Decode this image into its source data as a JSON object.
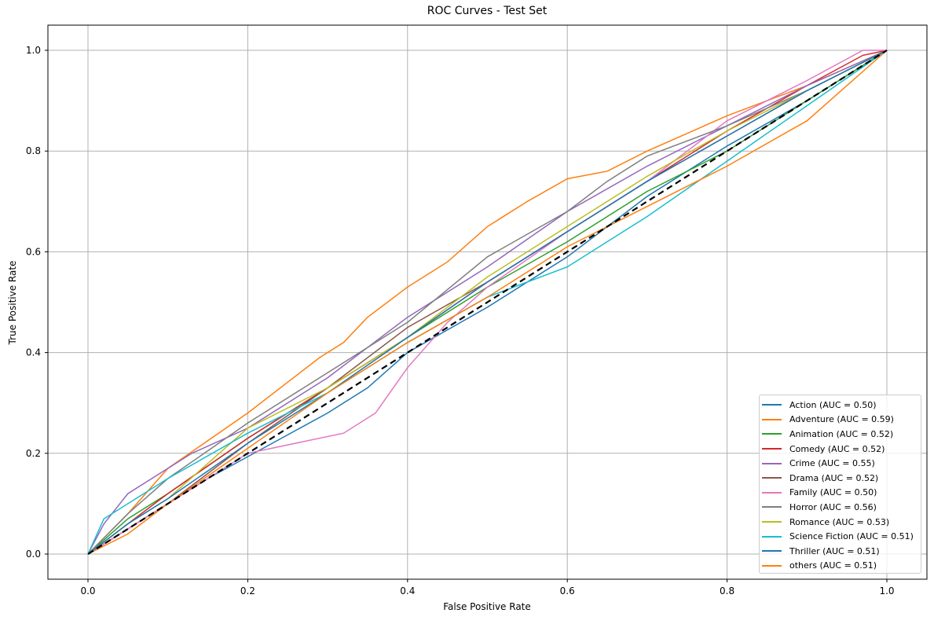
{
  "chart_data": {
    "type": "line",
    "title": "ROC Curves - Test Set",
    "xlabel": "False Positive Rate",
    "ylabel": "True Positive Rate",
    "xlim": [
      -0.05,
      1.05
    ],
    "ylim": [
      -0.05,
      1.05
    ],
    "xticks": [
      "0.0",
      "0.2",
      "0.4",
      "0.6",
      "0.8",
      "1.0"
    ],
    "yticks": [
      "0.0",
      "0.2",
      "0.4",
      "0.6",
      "0.8",
      "1.0"
    ],
    "grid": true,
    "legend_position": "lower right",
    "diagonal": {
      "style": "dashed",
      "color": "#000000",
      "points": [
        [
          0,
          0
        ],
        [
          1,
          1
        ]
      ]
    },
    "series": [
      {
        "name": "Action (AUC = 0.50)",
        "color": "#1f77b4",
        "points": [
          [
            0,
            0
          ],
          [
            0.05,
            0.05
          ],
          [
            0.15,
            0.15
          ],
          [
            0.3,
            0.28
          ],
          [
            0.35,
            0.33
          ],
          [
            0.4,
            0.4
          ],
          [
            0.5,
            0.49
          ],
          [
            0.6,
            0.59
          ],
          [
            0.7,
            0.71
          ],
          [
            0.8,
            0.81
          ],
          [
            0.9,
            0.9
          ],
          [
            1,
            1
          ]
        ]
      },
      {
        "name": "Adventure (AUC = 0.59)",
        "color": "#ff7f0e",
        "points": [
          [
            0,
            0
          ],
          [
            0.05,
            0.08
          ],
          [
            0.1,
            0.17
          ],
          [
            0.2,
            0.28
          ],
          [
            0.29,
            0.39
          ],
          [
            0.32,
            0.42
          ],
          [
            0.35,
            0.47
          ],
          [
            0.4,
            0.53
          ],
          [
            0.45,
            0.58
          ],
          [
            0.5,
            0.65
          ],
          [
            0.55,
            0.7
          ],
          [
            0.6,
            0.745
          ],
          [
            0.65,
            0.76
          ],
          [
            0.7,
            0.8
          ],
          [
            0.8,
            0.87
          ],
          [
            0.9,
            0.93
          ],
          [
            1,
            1
          ]
        ]
      },
      {
        "name": "Animation (AUC = 0.52)",
        "color": "#2ca02c",
        "points": [
          [
            0,
            0
          ],
          [
            0.05,
            0.07
          ],
          [
            0.1,
            0.12
          ],
          [
            0.2,
            0.23
          ],
          [
            0.3,
            0.33
          ],
          [
            0.4,
            0.43
          ],
          [
            0.5,
            0.53
          ],
          [
            0.6,
            0.62
          ],
          [
            0.7,
            0.72
          ],
          [
            0.8,
            0.8
          ],
          [
            0.9,
            0.9
          ],
          [
            1,
            1
          ]
        ]
      },
      {
        "name": "Comedy (AUC = 0.52)",
        "color": "#d62728",
        "points": [
          [
            0,
            0
          ],
          [
            0.05,
            0.06
          ],
          [
            0.1,
            0.12
          ],
          [
            0.2,
            0.23
          ],
          [
            0.3,
            0.33
          ],
          [
            0.4,
            0.43
          ],
          [
            0.5,
            0.54
          ],
          [
            0.6,
            0.64
          ],
          [
            0.7,
            0.74
          ],
          [
            0.8,
            0.84
          ],
          [
            0.9,
            0.93
          ],
          [
            0.97,
            0.99
          ],
          [
            1,
            1
          ]
        ]
      },
      {
        "name": "Crime (AUC = 0.55)",
        "color": "#9467bd",
        "points": [
          [
            0,
            0
          ],
          [
            0.02,
            0.06
          ],
          [
            0.05,
            0.12
          ],
          [
            0.1,
            0.17
          ],
          [
            0.13,
            0.2
          ],
          [
            0.2,
            0.25
          ],
          [
            0.3,
            0.35
          ],
          [
            0.4,
            0.47
          ],
          [
            0.5,
            0.57
          ],
          [
            0.6,
            0.68
          ],
          [
            0.7,
            0.77
          ],
          [
            0.8,
            0.85
          ],
          [
            0.9,
            0.93
          ],
          [
            1,
            1
          ]
        ]
      },
      {
        "name": "Drama (AUC = 0.52)",
        "color": "#8c564b",
        "points": [
          [
            0,
            0
          ],
          [
            0.05,
            0.05
          ],
          [
            0.1,
            0.1
          ],
          [
            0.2,
            0.22
          ],
          [
            0.3,
            0.33
          ],
          [
            0.4,
            0.45
          ],
          [
            0.5,
            0.54
          ],
          [
            0.6,
            0.64
          ],
          [
            0.7,
            0.74
          ],
          [
            0.8,
            0.83
          ],
          [
            0.9,
            0.92
          ],
          [
            1,
            1
          ]
        ]
      },
      {
        "name": "Family (AUC = 0.50)",
        "color": "#e377c2",
        "points": [
          [
            0,
            0
          ],
          [
            0.1,
            0.1
          ],
          [
            0.2,
            0.2
          ],
          [
            0.32,
            0.24
          ],
          [
            0.36,
            0.28
          ],
          [
            0.4,
            0.37
          ],
          [
            0.45,
            0.46
          ],
          [
            0.5,
            0.53
          ],
          [
            0.6,
            0.64
          ],
          [
            0.7,
            0.74
          ],
          [
            0.8,
            0.86
          ],
          [
            0.9,
            0.94
          ],
          [
            0.97,
            1
          ],
          [
            1,
            1
          ]
        ]
      },
      {
        "name": "Horror (AUC = 0.56)",
        "color": "#7f7f7f",
        "points": [
          [
            0,
            0
          ],
          [
            0.05,
            0.08
          ],
          [
            0.1,
            0.15
          ],
          [
            0.2,
            0.26
          ],
          [
            0.3,
            0.36
          ],
          [
            0.4,
            0.46
          ],
          [
            0.5,
            0.59
          ],
          [
            0.6,
            0.68
          ],
          [
            0.65,
            0.74
          ],
          [
            0.7,
            0.79
          ],
          [
            0.8,
            0.85
          ],
          [
            0.9,
            0.92
          ],
          [
            1,
            1
          ]
        ]
      },
      {
        "name": "Romance (AUC = 0.53)",
        "color": "#bcbd22",
        "points": [
          [
            0,
            0
          ],
          [
            0.05,
            0.06
          ],
          [
            0.1,
            0.11
          ],
          [
            0.2,
            0.25
          ],
          [
            0.3,
            0.33
          ],
          [
            0.4,
            0.43
          ],
          [
            0.5,
            0.55
          ],
          [
            0.6,
            0.65
          ],
          [
            0.7,
            0.75
          ],
          [
            0.8,
            0.84
          ],
          [
            0.9,
            0.92
          ],
          [
            1,
            1
          ]
        ]
      },
      {
        "name": "Science Fiction (AUC = 0.51)",
        "color": "#17becf",
        "points": [
          [
            0,
            0
          ],
          [
            0.02,
            0.07
          ],
          [
            0.05,
            0.1
          ],
          [
            0.1,
            0.15
          ],
          [
            0.2,
            0.24
          ],
          [
            0.3,
            0.32
          ],
          [
            0.4,
            0.42
          ],
          [
            0.5,
            0.51
          ],
          [
            0.6,
            0.57
          ],
          [
            0.7,
            0.67
          ],
          [
            0.8,
            0.78
          ],
          [
            0.9,
            0.89
          ],
          [
            1,
            1
          ]
        ]
      },
      {
        "name": "Thriller (AUC = 0.51)",
        "color": "#1f77b4",
        "points": [
          [
            0,
            0
          ],
          [
            0.05,
            0.06
          ],
          [
            0.1,
            0.11
          ],
          [
            0.2,
            0.22
          ],
          [
            0.3,
            0.32
          ],
          [
            0.4,
            0.43
          ],
          [
            0.5,
            0.54
          ],
          [
            0.6,
            0.64
          ],
          [
            0.7,
            0.74
          ],
          [
            0.8,
            0.83
          ],
          [
            0.9,
            0.92
          ],
          [
            1,
            1
          ]
        ]
      },
      {
        "name": "others (AUC = 0.51)",
        "color": "#ff7f0e",
        "points": [
          [
            0,
            0
          ],
          [
            0.05,
            0.04
          ],
          [
            0.1,
            0.1
          ],
          [
            0.2,
            0.21
          ],
          [
            0.3,
            0.32
          ],
          [
            0.4,
            0.42
          ],
          [
            0.5,
            0.51
          ],
          [
            0.6,
            0.61
          ],
          [
            0.7,
            0.69
          ],
          [
            0.8,
            0.77
          ],
          [
            0.9,
            0.86
          ],
          [
            1,
            1
          ]
        ]
      }
    ]
  }
}
